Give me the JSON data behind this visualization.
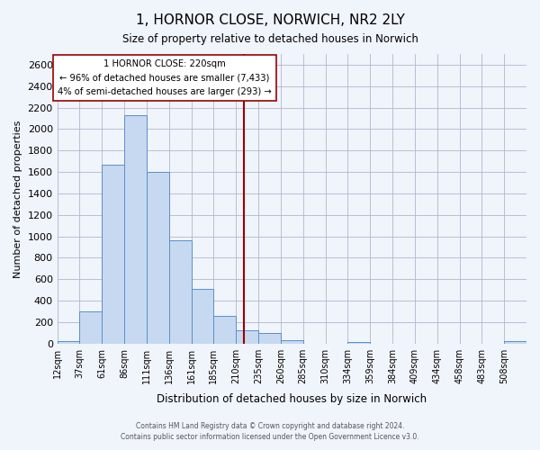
{
  "title": "1, HORNOR CLOSE, NORWICH, NR2 2LY",
  "subtitle": "Size of property relative to detached houses in Norwich",
  "xlabel": "Distribution of detached houses by size in Norwich",
  "ylabel": "Number of detached properties",
  "bin_labels": [
    "12sqm",
    "37sqm",
    "61sqm",
    "86sqm",
    "111sqm",
    "136sqm",
    "161sqm",
    "185sqm",
    "210sqm",
    "235sqm",
    "260sqm",
    "285sqm",
    "310sqm",
    "334sqm",
    "359sqm",
    "384sqm",
    "409sqm",
    "434sqm",
    "458sqm",
    "483sqm",
    "508sqm"
  ],
  "bar_heights": [
    20,
    300,
    1670,
    2130,
    1600,
    960,
    510,
    255,
    125,
    100,
    30,
    0,
    0,
    15,
    0,
    0,
    0,
    0,
    0,
    0,
    20
  ],
  "bar_color": "#c6d9f0",
  "bar_edge_color": "#5b8fc9",
  "vline_x": 8.36,
  "vline_color": "#990000",
  "annotation_title": "1 HORNOR CLOSE: 220sqm",
  "annotation_line1": "← 96% of detached houses are smaller (7,433)",
  "annotation_line2": "4% of semi-detached houses are larger (293) →",
  "annotation_box_color": "#ffffff",
  "annotation_box_edge": "#990000",
  "ylim": [
    0,
    2700
  ],
  "yticks": [
    0,
    200,
    400,
    600,
    800,
    1000,
    1200,
    1400,
    1600,
    1800,
    2000,
    2200,
    2400,
    2600
  ],
  "footer_line1": "Contains HM Land Registry data © Crown copyright and database right 2024.",
  "footer_line2": "Contains public sector information licensed under the Open Government Licence v3.0.",
  "background_color": "#f0f4fb",
  "grid_color": "#b0b8cc"
}
